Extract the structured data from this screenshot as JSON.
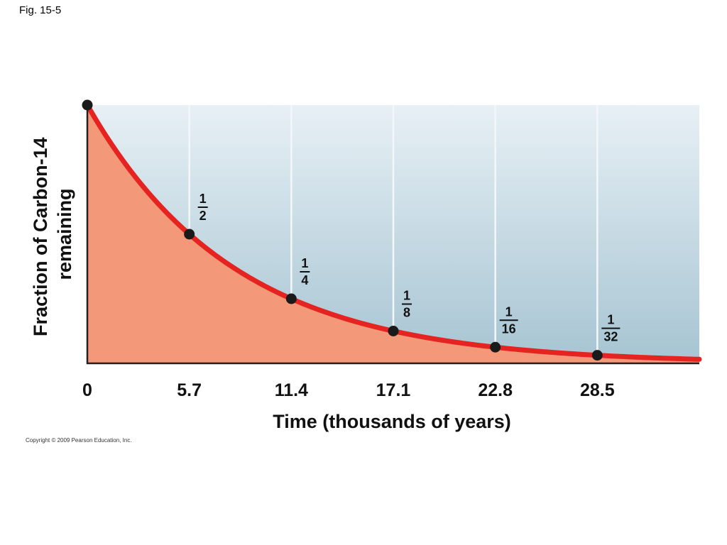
{
  "figure": {
    "label": "Fig. 15-5",
    "copyright": "Copyright © 2009 Pearson Education, Inc."
  },
  "chart_data": {
    "type": "line",
    "xlabel": "Time (thousands of years)",
    "ylabel_lines": [
      "Fraction of Carbon-14",
      "remaining"
    ],
    "x_ticks": [
      {
        "value": 0,
        "label": "0"
      },
      {
        "value": 5.7,
        "label": "5.7"
      },
      {
        "value": 11.4,
        "label": "11.4"
      },
      {
        "value": 17.1,
        "label": "17.1"
      },
      {
        "value": 22.8,
        "label": "22.8"
      },
      {
        "value": 28.5,
        "label": "28.5"
      }
    ],
    "xlim": [
      0,
      34.2
    ],
    "ylim": [
      0,
      1
    ],
    "half_life": 5.7,
    "points": [
      {
        "x": 0,
        "y": 1,
        "numerator": "",
        "denominator": ""
      },
      {
        "x": 5.7,
        "y": 0.5,
        "numerator": "1",
        "denominator": "2"
      },
      {
        "x": 11.4,
        "y": 0.25,
        "numerator": "1",
        "denominator": "4"
      },
      {
        "x": 17.1,
        "y": 0.125,
        "numerator": "1",
        "denominator": "8"
      },
      {
        "x": 22.8,
        "y": 0.0625,
        "numerator": "1",
        "denominator": "16"
      },
      {
        "x": 28.5,
        "y": 0.03125,
        "numerator": "1",
        "denominator": "32"
      }
    ],
    "grid": "vertical",
    "colors": {
      "curve": "#e52421",
      "fill": "#f4987a",
      "background_top": "#e7f0f5",
      "background_bottom": "#a6c4d2",
      "marker": "#1a1a1a",
      "gridline": "#f4f7f9"
    }
  }
}
